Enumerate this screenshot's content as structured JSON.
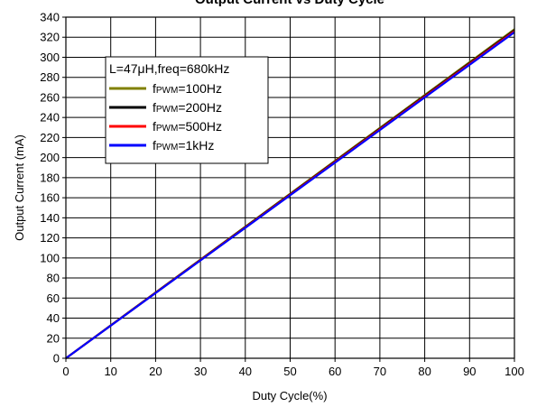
{
  "chart_data": {
    "type": "line",
    "title": "Output Current vs Duty Cycle",
    "xlabel": "Duty Cycle(%)",
    "ylabel": "Output Current (mA)",
    "xlim": [
      0,
      100
    ],
    "ylim": [
      0,
      340
    ],
    "x_ticks": [
      "0",
      "10",
      "20",
      "30",
      "40",
      "50",
      "60",
      "70",
      "80",
      "90",
      "100"
    ],
    "y_ticks": [
      "0",
      "20",
      "40",
      "60",
      "80",
      "100",
      "120",
      "140",
      "160",
      "180",
      "200",
      "220",
      "240",
      "260",
      "280",
      "300",
      "320",
      "340"
    ],
    "grid": true,
    "legend_position": "top-left",
    "legend_title": "L=47μH,freq=680kHz",
    "series": [
      {
        "name": "fPWM=100Hz",
        "label_main": "f",
        "label_sub": "PWM",
        "label_rest": "=100Hz",
        "color": "#808000",
        "x": [
          0,
          100
        ],
        "y": [
          0,
          328
        ]
      },
      {
        "name": "fPWM=200Hz",
        "label_main": "f",
        "label_sub": "PWM",
        "label_rest": "=200Hz",
        "color": "#000000",
        "x": [
          0,
          100
        ],
        "y": [
          0,
          327
        ]
      },
      {
        "name": "fPWM=500Hz",
        "label_main": "f",
        "label_sub": "PWM",
        "label_rest": "=500Hz",
        "color": "#ff0000",
        "x": [
          0,
          100
        ],
        "y": [
          0,
          326
        ]
      },
      {
        "name": "fPWM=1kHz",
        "label_main": "f",
        "label_sub": "PWM",
        "label_rest": "=1kHz",
        "color": "#0000ff",
        "x": [
          0,
          100
        ],
        "y": [
          0,
          325
        ]
      }
    ]
  }
}
